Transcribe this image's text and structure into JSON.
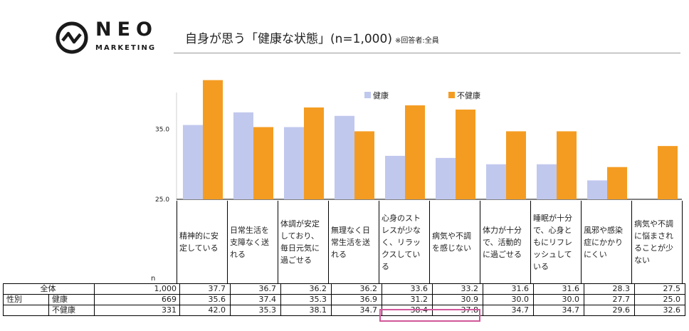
{
  "brand": {
    "name": "NEO",
    "subname": "MARKETING"
  },
  "title": {
    "main": "自身が思う「健康な状態」(n=1,000)",
    "note": "※回答者:全員"
  },
  "colors": {
    "series1": "#c1c8ee",
    "series2": "#f49c21",
    "highlight": "#d1589a"
  },
  "chart_data": {
    "type": "bar",
    "title": "自身が思う「健康な状態」(n=1,000)",
    "categories": [
      "精神的に安定している",
      "日常生活を支障なく送れる",
      "体調が安定しており、毎日元気に過ごせる",
      "無理なく日常生活を送れる",
      "心身のストレスが少なく、リラックスしている",
      "病気や不調を感じない",
      "体力が十分で、活動的に過ごせる",
      "睡眠が十分で、心身ともにリフレッシュしている",
      "風邪や感染症にかかりにくい",
      "病気や不調に悩まされることが少ない"
    ],
    "series": [
      {
        "name": "健康",
        "values": [
          35.6,
          37.4,
          35.3,
          36.9,
          31.2,
          30.9,
          30.0,
          30.0,
          27.7,
          25.0
        ]
      },
      {
        "name": "不健康",
        "values": [
          42.0,
          35.3,
          38.1,
          34.7,
          38.4,
          37.8,
          34.7,
          34.7,
          29.6,
          32.6
        ]
      }
    ],
    "yticks": [
      "35.0",
      "25.0"
    ],
    "ylim": [
      25,
      45
    ],
    "legend_position": "top-center"
  },
  "table": {
    "n_header": "n",
    "rows": [
      {
        "group": "",
        "label": "全体",
        "n": "1,000",
        "values": [
          "37.7",
          "36.7",
          "36.2",
          "36.2",
          "33.6",
          "33.2",
          "31.6",
          "31.6",
          "28.3",
          "27.5"
        ]
      },
      {
        "group": "性別",
        "label": "健康",
        "n": "669",
        "values": [
          "35.6",
          "37.4",
          "35.3",
          "36.9",
          "31.2",
          "30.9",
          "30.0",
          "30.0",
          "27.7",
          "25.0"
        ]
      },
      {
        "group": "",
        "label": "不健康",
        "n": "331",
        "values": [
          "42.0",
          "35.3",
          "38.1",
          "34.7",
          "38.4",
          "37.8",
          "34.7",
          "34.7",
          "29.6",
          "32.6"
        ]
      }
    ]
  }
}
